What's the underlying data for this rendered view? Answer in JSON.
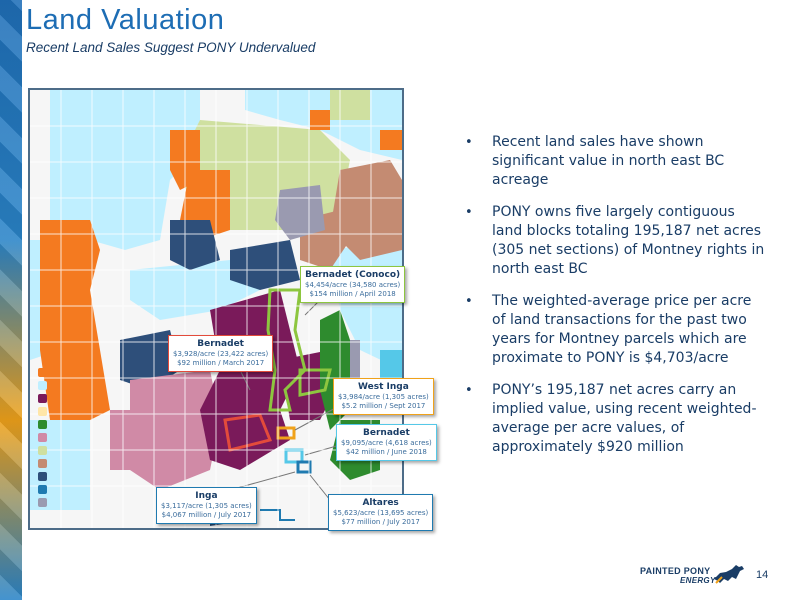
{
  "header": {
    "title": "Land Valuation",
    "subtitle": "Recent Land Sales Suggest PONY Undervalued"
  },
  "map": {
    "callouts": {
      "bernadet_conoco": {
        "title": "Bernadet (Conoco)",
        "line1": "$4,454/acre (34,580 acres)",
        "line2": "$154 million / April 2018"
      },
      "bernadet_march": {
        "title": "Bernadet",
        "line1": "$3,928/acre (23,422 acres)",
        "line2": "$92 million / March 2017"
      },
      "west_inga": {
        "title": "West Inga",
        "line1": "$3,984/acre (1,305 acres)",
        "line2": "$5.2 million / Sept 2017"
      },
      "bernadet_june": {
        "title": "Bernadet",
        "line1": "$9,095/acre (4,618 acres)",
        "line2": "$42 million / June 2018"
      },
      "inga": {
        "title": "Inga",
        "line1": "$3,117/acre (1,305 acres)",
        "line2": "$4,067 million / July 2017"
      },
      "altares": {
        "title": "Altares",
        "line1": "$5,623/acre (13,695 acres)",
        "line2": "$77 million / July 2017"
      }
    },
    "legend_colors": [
      "#f47a20",
      "#bfefff",
      "#7a1a5a",
      "#ffe6a8",
      "#2e8b2e",
      "#d08aa6",
      "#cfe0a0",
      "#c48b72",
      "#2e4f7a",
      "#1f7ab0",
      "#9a9ab0"
    ]
  },
  "bullets": [
    "Recent land sales have shown significant value in north east BC acreage",
    "PONY owns five largely contiguous land blocks totaling 195,187 net acres (305 net sections) of Montney rights in north east BC",
    "The weighted-average price per acre of land transactions for the past two years for Montney parcels which are proximate to PONY is $4,703/acre",
    "PONY’s 195,187 net acres carry an implied value, using recent weighted-average per acre values, of approximately $920 million"
  ],
  "footer": {
    "logo_line1": "PAINTED PONY",
    "logo_line2": "ENERGY",
    "page_number": "14"
  }
}
